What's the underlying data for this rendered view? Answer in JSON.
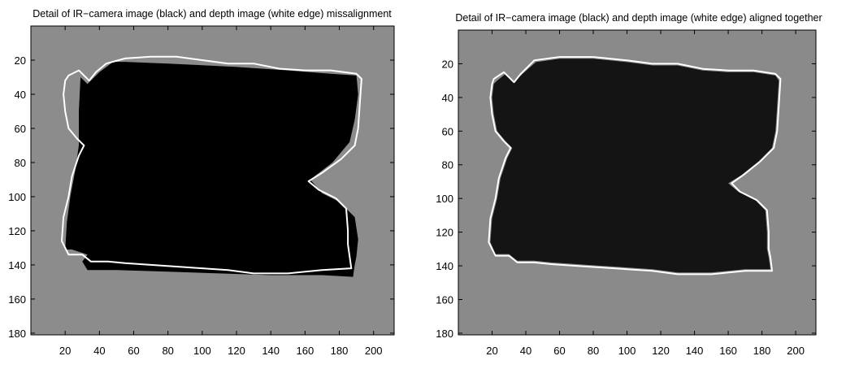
{
  "chart_data": [
    {
      "type": "heatmap",
      "title": "Detail of IR−camera image (black) and depth image (white edge) missalignment",
      "xlabel": "",
      "ylabel": "",
      "xlim": [
        0,
        212
      ],
      "ylim": [
        181,
        0
      ],
      "x_ticks": [
        20,
        40,
        60,
        80,
        100,
        120,
        140,
        160,
        180,
        200
      ],
      "y_ticks": [
        20,
        40,
        60,
        80,
        100,
        120,
        140,
        160,
        180
      ],
      "grid": false,
      "colors": {
        "background": "#8c8c8c",
        "ir_region": "#000000",
        "depth_edge": "#ffffff"
      },
      "ir_region_polygon": [
        [
          33,
          34
        ],
        [
          40,
          27
        ],
        [
          48,
          21
        ],
        [
          55,
          21
        ],
        [
          80,
          22
        ],
        [
          100,
          23
        ],
        [
          120,
          24
        ],
        [
          150,
          26
        ],
        [
          175,
          28
        ],
        [
          190,
          29
        ],
        [
          191,
          40
        ],
        [
          189,
          55
        ],
        [
          186,
          68
        ],
        [
          176,
          80
        ],
        [
          163,
          90
        ],
        [
          170,
          98
        ],
        [
          180,
          103
        ],
        [
          189,
          112
        ],
        [
          191,
          125
        ],
        [
          190,
          135
        ],
        [
          189,
          140
        ],
        [
          188,
          147
        ],
        [
          170,
          146
        ],
        [
          140,
          146
        ],
        [
          110,
          145
        ],
        [
          80,
          144
        ],
        [
          50,
          143
        ],
        [
          33,
          143
        ],
        [
          30,
          138
        ],
        [
          33,
          134
        ],
        [
          24,
          131
        ],
        [
          20,
          131
        ],
        [
          21,
          115
        ],
        [
          23,
          100
        ],
        [
          26,
          84
        ],
        [
          28,
          70
        ],
        [
          28,
          50
        ],
        [
          29,
          30
        ]
      ],
      "depth_edge": [
        [
          22,
          29
        ],
        [
          28,
          26
        ],
        [
          34,
          32
        ],
        [
          38,
          27
        ],
        [
          44,
          22
        ],
        [
          55,
          19
        ],
        [
          70,
          18
        ],
        [
          85,
          18
        ],
        [
          100,
          20
        ],
        [
          115,
          22
        ],
        [
          130,
          22
        ],
        [
          145,
          25
        ],
        [
          160,
          26
        ],
        [
          175,
          26
        ],
        [
          190,
          28
        ],
        [
          193,
          31
        ],
        [
          192,
          45
        ],
        [
          191,
          60
        ],
        [
          189,
          70
        ],
        [
          181,
          78
        ],
        [
          170,
          86
        ],
        [
          162,
          91
        ],
        [
          168,
          96
        ],
        [
          178,
          101
        ],
        [
          184,
          107
        ],
        [
          185,
          120
        ],
        [
          185,
          128
        ],
        [
          186,
          135
        ],
        [
          187,
          142
        ],
        [
          170,
          143
        ],
        [
          150,
          145
        ],
        [
          130,
          145
        ],
        [
          115,
          143
        ],
        [
          100,
          142
        ],
        [
          85,
          141
        ],
        [
          70,
          140
        ],
        [
          55,
          139
        ],
        [
          45,
          138
        ],
        [
          35,
          138
        ],
        [
          30,
          134
        ],
        [
          22,
          134
        ],
        [
          18,
          126
        ],
        [
          19,
          112
        ],
        [
          22,
          100
        ],
        [
          24,
          88
        ],
        [
          28,
          76
        ],
        [
          31,
          70
        ],
        [
          27,
          66
        ],
        [
          22,
          60
        ],
        [
          20,
          50
        ],
        [
          19,
          40
        ],
        [
          20,
          32
        ]
      ]
    },
    {
      "type": "heatmap",
      "title": "Detail of IR−camera image (black) and depth image (white edge) aligned together",
      "xlabel": "",
      "ylabel": "",
      "xlim": [
        0,
        212
      ],
      "ylim": [
        181,
        0
      ],
      "x_ticks": [
        20,
        40,
        60,
        80,
        100,
        120,
        140,
        160,
        180,
        200
      ],
      "y_ticks": [
        20,
        40,
        60,
        80,
        100,
        120,
        140,
        160,
        180
      ],
      "grid": false,
      "colors": {
        "background": "#8a8a8a",
        "ir_region": "#141414",
        "depth_edge": "#ffffff"
      },
      "ir_region_polygon": [
        [
          23,
          30
        ],
        [
          28,
          26
        ],
        [
          33,
          31
        ],
        [
          38,
          26
        ],
        [
          46,
          19
        ],
        [
          60,
          17
        ],
        [
          80,
          17
        ],
        [
          100,
          19
        ],
        [
          115,
          21
        ],
        [
          130,
          21
        ],
        [
          145,
          24
        ],
        [
          160,
          25
        ],
        [
          175,
          25
        ],
        [
          188,
          27
        ],
        [
          190,
          30
        ],
        [
          189,
          45
        ],
        [
          188,
          60
        ],
        [
          186,
          70
        ],
        [
          178,
          78
        ],
        [
          168,
          86
        ],
        [
          160,
          91
        ],
        [
          166,
          96
        ],
        [
          176,
          101
        ],
        [
          182,
          107
        ],
        [
          183,
          120
        ],
        [
          183,
          130
        ],
        [
          184,
          135
        ],
        [
          185,
          142
        ],
        [
          170,
          142
        ],
        [
          150,
          144
        ],
        [
          130,
          144
        ],
        [
          115,
          142
        ],
        [
          100,
          141
        ],
        [
          85,
          140
        ],
        [
          70,
          139
        ],
        [
          55,
          138
        ],
        [
          45,
          137
        ],
        [
          35,
          137
        ],
        [
          30,
          133
        ],
        [
          22,
          133
        ],
        [
          19,
          126
        ],
        [
          20,
          112
        ],
        [
          23,
          100
        ],
        [
          25,
          88
        ],
        [
          29,
          76
        ],
        [
          32,
          70
        ],
        [
          28,
          66
        ],
        [
          23,
          60
        ],
        [
          21,
          50
        ],
        [
          20,
          40
        ],
        [
          21,
          32
        ]
      ],
      "depth_edge": [
        [
          21,
          29
        ],
        [
          27,
          25
        ],
        [
          33,
          31
        ],
        [
          37,
          26
        ],
        [
          45,
          18
        ],
        [
          60,
          16
        ],
        [
          80,
          16
        ],
        [
          100,
          18
        ],
        [
          115,
          20
        ],
        [
          130,
          20
        ],
        [
          145,
          23
        ],
        [
          160,
          24
        ],
        [
          175,
          24
        ],
        [
          188,
          26
        ],
        [
          191,
          29
        ],
        [
          190,
          45
        ],
        [
          189,
          60
        ],
        [
          187,
          70
        ],
        [
          179,
          78
        ],
        [
          169,
          86
        ],
        [
          162,
          91
        ],
        [
          167,
          96
        ],
        [
          177,
          101
        ],
        [
          183,
          107
        ],
        [
          184,
          120
        ],
        [
          184,
          130
        ],
        [
          185,
          135
        ],
        [
          186,
          143
        ],
        [
          170,
          143
        ],
        [
          150,
          145
        ],
        [
          130,
          145
        ],
        [
          115,
          143
        ],
        [
          100,
          142
        ],
        [
          85,
          141
        ],
        [
          70,
          140
        ],
        [
          55,
          139
        ],
        [
          45,
          138
        ],
        [
          35,
          138
        ],
        [
          30,
          134
        ],
        [
          22,
          134
        ],
        [
          18,
          126
        ],
        [
          19,
          112
        ],
        [
          22,
          100
        ],
        [
          24,
          88
        ],
        [
          28,
          76
        ],
        [
          31,
          70
        ],
        [
          27,
          66
        ],
        [
          22,
          60
        ],
        [
          20,
          50
        ],
        [
          19,
          40
        ],
        [
          20,
          32
        ]
      ]
    }
  ]
}
